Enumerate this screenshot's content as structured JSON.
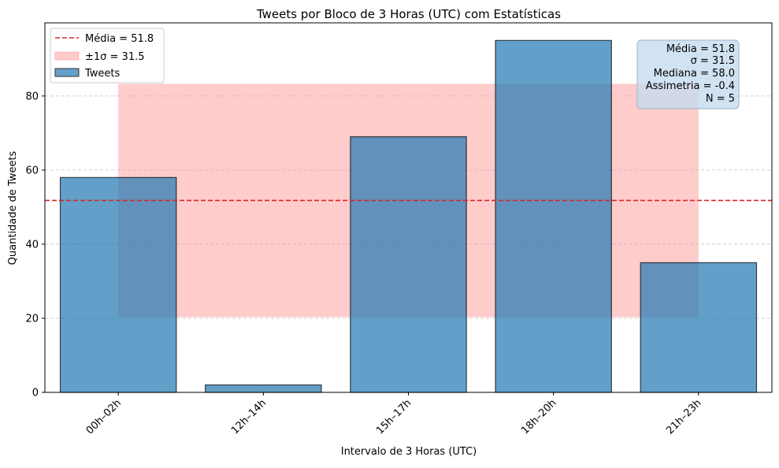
{
  "chart_data": {
    "type": "bar",
    "title": "Tweets por Bloco de 3 Horas (UTC) com Estatísticas",
    "xlabel": "Intervalo de 3 Horas (UTC)",
    "ylabel": "Quantidade de Tweets",
    "categories": [
      "00h–02h",
      "12h–14h",
      "15h–17h",
      "18h–20h",
      "21h–23h"
    ],
    "series": [
      {
        "name": "Tweets",
        "values": [
          58,
          2,
          69,
          95,
          35
        ],
        "color": "#1f77b4"
      }
    ],
    "ylim": [
      0,
      99.75
    ],
    "yticks": [
      0,
      20,
      40,
      60,
      80
    ],
    "grid": "y dashed",
    "mean": 51.8,
    "sigma": 31.5,
    "sigma_band": [
      20.3,
      83.3
    ],
    "mean_line_color": "#d62728",
    "band_color": "#ff9999",
    "legend": {
      "placement": "top-left",
      "entries": [
        "Média = 51.8",
        "±1σ = 31.5",
        "Tweets"
      ]
    },
    "stats_box": {
      "placement": "top-right",
      "lines": [
        "Média = 51.8",
        "σ = 31.5",
        "Mediana = 58.0",
        "Assimetria = -0.4",
        "N = 5"
      ]
    }
  }
}
